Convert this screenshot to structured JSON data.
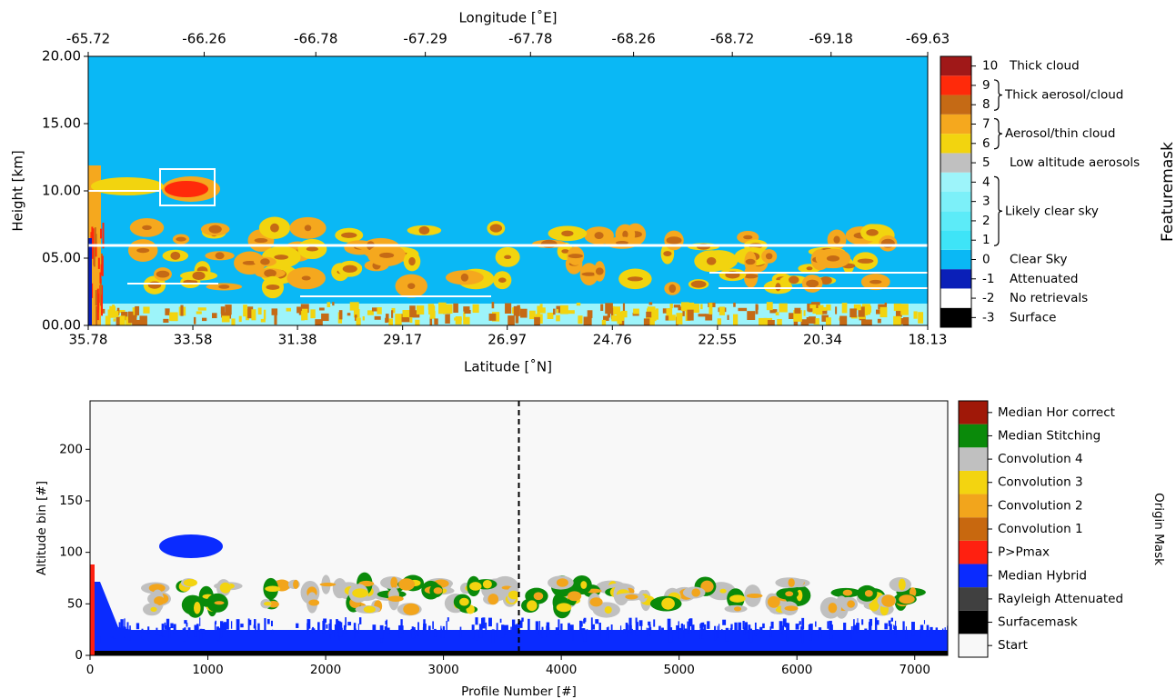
{
  "chart_data": [
    {
      "type": "heatmap",
      "xlabel": "Latitude  [˚N]",
      "x2label": "Longitude  [˚E]",
      "ylabel": "Height [km]",
      "xlim": [
        35.78,
        18.13
      ],
      "xticks": [
        35.78,
        33.58,
        31.38,
        29.17,
        26.97,
        24.76,
        22.55,
        20.34,
        18.13
      ],
      "x2lim": [
        -65.72,
        -69.63
      ],
      "x2ticks": [
        -65.72,
        -66.26,
        -66.78,
        -67.29,
        -67.78,
        -68.26,
        -68.72,
        -69.18,
        -69.63
      ],
      "ylim": [
        0,
        20
      ],
      "yticks": [
        {
          "value": 0,
          "label": "00.00"
        },
        {
          "value": 5,
          "label": "05.00"
        },
        {
          "value": 10,
          "label": "10.00"
        },
        {
          "value": 15,
          "label": "15.00"
        },
        {
          "value": 20,
          "label": "20.00"
        }
      ],
      "colorbar": {
        "label": "Featuremask",
        "levels": [
          {
            "value": -3,
            "color": "#000000",
            "label": "Surface"
          },
          {
            "value": -2,
            "color": "#ffffff",
            "label": "No retrievals"
          },
          {
            "value": -1,
            "color": "#0a1fb8",
            "label": "Attenuated"
          },
          {
            "value": 0,
            "color": "#0ab8f5",
            "label": "Clear Sky"
          },
          {
            "value": 1,
            "color": "#3ee4f7"
          },
          {
            "value": 2,
            "color": "#5cebf8"
          },
          {
            "value": 3,
            "color": "#7cf0f9"
          },
          {
            "value": 4,
            "color": "#9df4fa"
          },
          {
            "value": 5,
            "color": "#c0c0c0",
            "label": "Low altitude aerosols"
          },
          {
            "value": 6,
            "color": "#f2d40f"
          },
          {
            "value": 7,
            "color": "#f5a81e"
          },
          {
            "value": 8,
            "color": "#c56a15"
          },
          {
            "value": 9,
            "color": "#ff2a0a"
          },
          {
            "value": 10,
            "color": "#a01818",
            "label": "Thick cloud"
          }
        ],
        "groups": [
          {
            "label": "Likely clear sky",
            "range": [
              1,
              4
            ]
          },
          {
            "label": "Aerosol/thin cloud",
            "range": [
              6,
              7
            ]
          },
          {
            "label": "Thick aerosol/cloud",
            "range": [
              8,
              9
            ]
          }
        ]
      }
    },
    {
      "type": "heatmap",
      "xlabel": "Profile Number [#]",
      "ylabel": "Altitude bin [#]",
      "xlim": [
        0,
        7280
      ],
      "xticks": [
        0,
        1000,
        2000,
        3000,
        4000,
        5000,
        6000,
        7000
      ],
      "ylim": [
        0,
        247
      ],
      "yticks": [
        0,
        50,
        100,
        150,
        200
      ],
      "vline": 3640,
      "colorbar": {
        "label": "Origin Mask",
        "levels": [
          {
            "name": "Start",
            "color": "#f8f8f8"
          },
          {
            "name": "Surfacemask",
            "color": "#000000"
          },
          {
            "name": "Rayleigh Attenuated",
            "color": "#404040"
          },
          {
            "name": "Median Hybrid",
            "color": "#0a2bff"
          },
          {
            "name": "P>Pmax",
            "color": "#ff2010"
          },
          {
            "name": "Convolution 1",
            "color": "#c8680f"
          },
          {
            "name": "Convolution 2",
            "color": "#f2a51c"
          },
          {
            "name": "Convolution 3",
            "color": "#f3d410"
          },
          {
            "name": "Convolution 4",
            "color": "#c0c0c0"
          },
          {
            "name": "Median Stitching",
            "color": "#0a8a0a"
          },
          {
            "name": "Median Hor correct",
            "color": "#a01808"
          }
        ]
      }
    }
  ]
}
